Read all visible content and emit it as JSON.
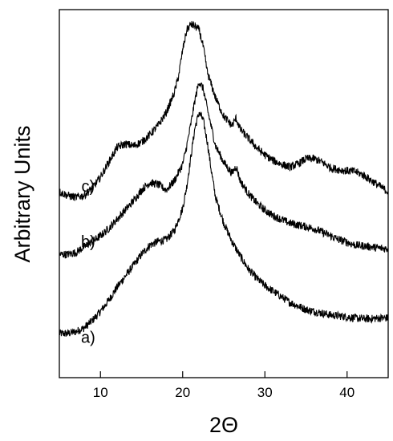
{
  "chart_data": {
    "type": "line",
    "xlabel": "2Θ",
    "ylabel": "Arbitrary Units",
    "xlim": [
      5,
      45
    ],
    "xticks": [
      10,
      20,
      30,
      40
    ],
    "ylim": [
      0,
      10
    ],
    "grid": false,
    "legend": "none",
    "yticks_labeled": false,
    "series": [
      {
        "name": "a)",
        "label_x": 8.5,
        "label_y": 0.95,
        "color": "#000000",
        "x": [
          5,
          6,
          7,
          8,
          9,
          10,
          11,
          12,
          13,
          14,
          15,
          16,
          17,
          18,
          19,
          20,
          20.5,
          21,
          21.5,
          22,
          22.5,
          23,
          23.5,
          24,
          25,
          26,
          27,
          28,
          29,
          30,
          31,
          32,
          33,
          34,
          35,
          36,
          37,
          38,
          39,
          40,
          41,
          42,
          43,
          44,
          45
        ],
        "y": [
          1.2,
          1.2,
          1.25,
          1.35,
          1.55,
          1.8,
          2.1,
          2.45,
          2.75,
          3.05,
          3.35,
          3.6,
          3.7,
          3.75,
          4.0,
          4.6,
          5.2,
          6.0,
          6.8,
          7.2,
          7.0,
          6.4,
          5.6,
          4.9,
          4.2,
          3.7,
          3.3,
          2.95,
          2.7,
          2.5,
          2.35,
          2.2,
          2.05,
          1.95,
          1.85,
          1.8,
          1.75,
          1.7,
          1.68,
          1.65,
          1.62,
          1.6,
          1.6,
          1.62,
          1.62
        ]
      },
      {
        "name": "b)",
        "label_x": 8.5,
        "label_y": 3.55,
        "color": "#000000",
        "x": [
          5,
          6,
          7,
          8,
          9,
          10,
          11,
          12,
          13,
          14,
          15,
          16,
          17,
          18,
          19,
          20,
          20.5,
          21,
          21.5,
          22,
          22.5,
          23,
          23.5,
          24,
          25,
          26,
          26.5,
          27,
          28,
          29,
          30,
          31,
          32,
          33,
          34,
          35,
          36,
          37,
          38,
          39,
          40,
          41,
          42,
          43,
          44,
          45
        ],
        "y": [
          3.35,
          3.35,
          3.4,
          3.55,
          3.7,
          3.85,
          4.05,
          4.3,
          4.55,
          4.8,
          5.1,
          5.3,
          5.25,
          5.1,
          5.35,
          5.8,
          6.3,
          6.9,
          7.55,
          8.05,
          7.85,
          7.3,
          6.8,
          6.3,
          5.85,
          5.55,
          5.75,
          5.35,
          5.0,
          4.75,
          4.55,
          4.4,
          4.3,
          4.2,
          4.15,
          4.1,
          4.05,
          3.95,
          3.85,
          3.75,
          3.68,
          3.6,
          3.58,
          3.55,
          3.52,
          3.5
        ]
      },
      {
        "name": "c)",
        "label_x": 8.5,
        "label_y": 5.05,
        "color": "#000000",
        "x": [
          5,
          6,
          7,
          8,
          9,
          10,
          11,
          12,
          13,
          14,
          15,
          16,
          17,
          18,
          19,
          19.5,
          20,
          20.5,
          21,
          21.5,
          22,
          22.5,
          23,
          24,
          25,
          26,
          26.5,
          27,
          28,
          29,
          30,
          31,
          32,
          33,
          34,
          35,
          36,
          37,
          38,
          39,
          40,
          41,
          42,
          43,
          44,
          45
        ],
        "y": [
          5.05,
          4.95,
          4.9,
          4.95,
          5.15,
          5.45,
          5.85,
          6.25,
          6.35,
          6.3,
          6.4,
          6.6,
          6.85,
          7.2,
          7.75,
          8.2,
          8.9,
          9.45,
          9.6,
          9.55,
          9.45,
          9.0,
          8.3,
          7.6,
          7.1,
          6.85,
          7.05,
          6.75,
          6.5,
          6.25,
          6.05,
          5.9,
          5.8,
          5.72,
          5.8,
          5.95,
          5.95,
          5.85,
          5.7,
          5.65,
          5.62,
          5.6,
          5.5,
          5.35,
          5.2,
          5.05
        ]
      }
    ]
  }
}
